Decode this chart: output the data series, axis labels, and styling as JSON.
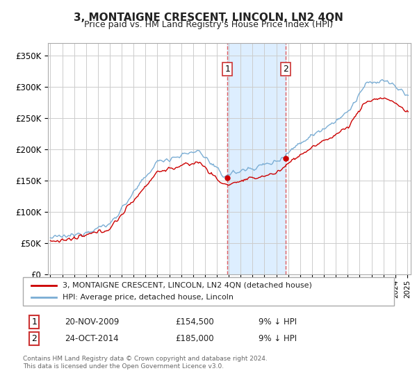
{
  "title": "3, MONTAIGNE CRESCENT, LINCOLN, LN2 4QN",
  "subtitle": "Price paid vs. HM Land Registry's House Price Index (HPI)",
  "ylabel_ticks": [
    "£0",
    "£50K",
    "£100K",
    "£150K",
    "£200K",
    "£250K",
    "£300K",
    "£350K"
  ],
  "ytick_values": [
    0,
    50000,
    100000,
    150000,
    200000,
    250000,
    300000,
    350000
  ],
  "ylim": [
    0,
    370000
  ],
  "xlim_start": 1994.8,
  "xlim_end": 2025.3,
  "purchase1_date": 2009.9,
  "purchase1_price": 154500,
  "purchase1_label": "1",
  "purchase2_date": 2014.8,
  "purchase2_price": 185000,
  "purchase2_label": "2",
  "hpi_color": "#7aadd4",
  "property_color": "#cc0000",
  "shading_color": "#ddeeff",
  "grid_color": "#cccccc",
  "legend_entry1": "3, MONTAIGNE CRESCENT, LINCOLN, LN2 4QN (detached house)",
  "legend_entry2": "HPI: Average price, detached house, Lincoln",
  "table_row1": [
    "1",
    "20-NOV-2009",
    "£154,500",
    "9% ↓ HPI"
  ],
  "table_row2": [
    "2",
    "24-OCT-2014",
    "£185,000",
    "9% ↓ HPI"
  ],
  "footer": "Contains HM Land Registry data © Crown copyright and database right 2024.\nThis data is licensed under the Open Government Licence v3.0.",
  "background_color": "#ffffff"
}
